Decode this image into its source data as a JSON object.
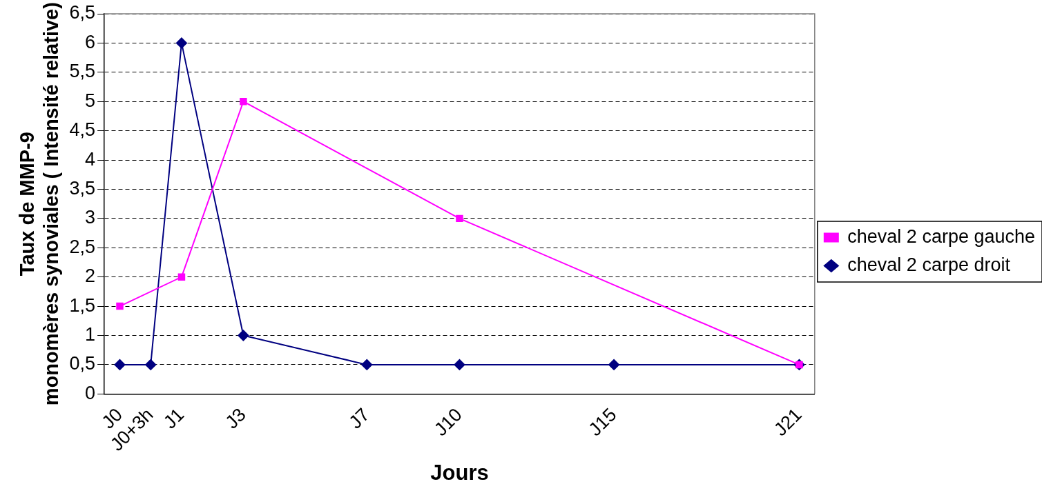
{
  "chart_data": {
    "type": "line",
    "xlabel": "Jours",
    "ylabel": "Taux de MMP-9 monomères synoviales ( Intensité relative)",
    "categories": [
      "J0",
      "J0+3h",
      "J1",
      null,
      "J3",
      null,
      null,
      null,
      "J7",
      null,
      null,
      "J10",
      null,
      null,
      null,
      null,
      "J15",
      null,
      null,
      null,
      null,
      null,
      "J21"
    ],
    "series": [
      {
        "name": "cheval 2 carpe droit",
        "color": "#000080",
        "marker": "diamond",
        "values": [
          0.5,
          0.5,
          6,
          null,
          1,
          null,
          null,
          null,
          0.5,
          null,
          null,
          0.5,
          null,
          null,
          null,
          null,
          0.5,
          null,
          null,
          null,
          null,
          null,
          0.5
        ]
      },
      {
        "name": "cheval 2 carpe gauche",
        "color": "#ff00ff",
        "marker": "square",
        "values": [
          1.5,
          null,
          2,
          null,
          5,
          null,
          null,
          null,
          null,
          null,
          null,
          3,
          null,
          null,
          null,
          null,
          null,
          null,
          null,
          null,
          null,
          null,
          0.5
        ]
      }
    ],
    "ylim": [
      0,
      6.5
    ],
    "yticks": [
      0,
      {
        "value": 0.5,
        "label": "0,5"
      },
      1,
      {
        "value": 1.5,
        "label": "1,5"
      },
      2,
      {
        "value": 2.5,
        "label": "2,5"
      },
      3,
      {
        "value": 3.5,
        "label": "3,5"
      },
      4,
      {
        "value": 4.5,
        "label": "4,5"
      },
      5,
      {
        "value": 5.5,
        "label": "5,5"
      },
      6,
      {
        "value": 6.5,
        "label": "6,5"
      }
    ],
    "grid": "y",
    "legend": "right",
    "line_style": "solid"
  }
}
